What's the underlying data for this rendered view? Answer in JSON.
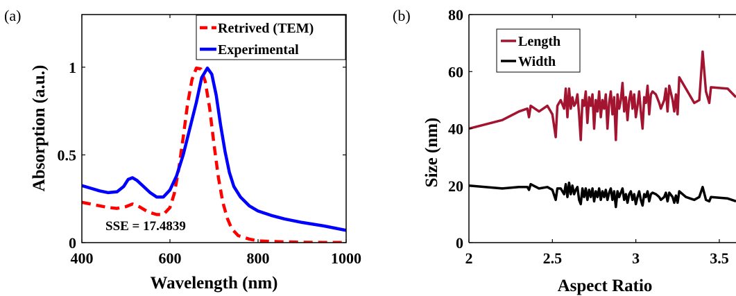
{
  "chart_data": [
    {
      "type": "line",
      "panel_label": "(a)",
      "xlabel": "Wavelength (nm)",
      "ylabel": "Absorption (a.u.)",
      "xlim": [
        400,
        1000
      ],
      "ylim": [
        0,
        1.3
      ],
      "xticks": [
        400,
        600,
        800,
        1000
      ],
      "xtick_labels": [
        "400",
        "600",
        "800",
        "1000"
      ],
      "yticks": [
        0,
        0.5,
        1
      ],
      "ytick_labels": [
        "0",
        "0.5",
        "1"
      ],
      "grid": false,
      "legend_position": "top-right",
      "annotation": "SSE = 17.4839",
      "series": [
        {
          "name": "Retrived (TEM)",
          "color": "#ff0000",
          "style": "dashed",
          "points": [
            [
              400,
              0.23
            ],
            [
              430,
              0.215
            ],
            [
              460,
              0.2
            ],
            [
              480,
              0.195
            ],
            [
              500,
              0.205
            ],
            [
              515,
              0.22
            ],
            [
              530,
              0.205
            ],
            [
              550,
              0.175
            ],
            [
              570,
              0.16
            ],
            [
              585,
              0.16
            ],
            [
              600,
              0.2
            ],
            [
              610,
              0.28
            ],
            [
              620,
              0.42
            ],
            [
              630,
              0.6
            ],
            [
              640,
              0.79
            ],
            [
              650,
              0.93
            ],
            [
              660,
              0.995
            ],
            [
              670,
              0.99
            ],
            [
              680,
              0.92
            ],
            [
              690,
              0.77
            ],
            [
              700,
              0.56
            ],
            [
              710,
              0.37
            ],
            [
              720,
              0.23
            ],
            [
              730,
              0.14
            ],
            [
              740,
              0.08
            ],
            [
              755,
              0.04
            ],
            [
              780,
              0.02
            ],
            [
              800,
              0.01
            ],
            [
              850,
              0.005
            ],
            [
              900,
              0.002
            ],
            [
              950,
              0.001
            ],
            [
              1000,
              0.001
            ]
          ]
        },
        {
          "name": "Experimental",
          "color": "#0000ff",
          "style": "solid",
          "points": [
            [
              400,
              0.325
            ],
            [
              420,
              0.31
            ],
            [
              440,
              0.295
            ],
            [
              460,
              0.285
            ],
            [
              480,
              0.29
            ],
            [
              495,
              0.32
            ],
            [
              505,
              0.36
            ],
            [
              515,
              0.37
            ],
            [
              525,
              0.355
            ],
            [
              540,
              0.32
            ],
            [
              555,
              0.285
            ],
            [
              570,
              0.26
            ],
            [
              585,
              0.26
            ],
            [
              600,
              0.3
            ],
            [
              615,
              0.38
            ],
            [
              630,
              0.5
            ],
            [
              645,
              0.65
            ],
            [
              660,
              0.8
            ],
            [
              672,
              0.94
            ],
            [
              685,
              0.995
            ],
            [
              695,
              0.96
            ],
            [
              705,
              0.84
            ],
            [
              715,
              0.67
            ],
            [
              725,
              0.52
            ],
            [
              735,
              0.4
            ],
            [
              745,
              0.32
            ],
            [
              760,
              0.26
            ],
            [
              780,
              0.21
            ],
            [
              800,
              0.18
            ],
            [
              830,
              0.155
            ],
            [
              860,
              0.135
            ],
            [
              900,
              0.115
            ],
            [
              950,
              0.095
            ],
            [
              1000,
              0.07
            ]
          ]
        }
      ]
    },
    {
      "type": "line",
      "panel_label": "(b)",
      "xlabel": "Aspect Ratio",
      "ylabel": "Size (nm)",
      "xlim": [
        2,
        3.6
      ],
      "ylim": [
        0,
        80
      ],
      "xticks": [
        2,
        2.5,
        3,
        3.5
      ],
      "xtick_labels": [
        "2",
        "2.5",
        "3",
        "3.5"
      ],
      "yticks": [
        0,
        20,
        40,
        60,
        80
      ],
      "ytick_labels": [
        "0",
        "20",
        "40",
        "60",
        "80"
      ],
      "grid": false,
      "legend_position": "top-left",
      "series": [
        {
          "name": "Length",
          "color": "#a2142f",
          "style": "solid",
          "points": [
            [
              2,
              40
            ],
            [
              2.2,
              43
            ],
            [
              2.3,
              46
            ],
            [
              2.35,
              47
            ],
            [
              2.36,
              44
            ],
            [
              2.37,
              48
            ],
            [
              2.42,
              46
            ],
            [
              2.47,
              48
            ],
            [
              2.5,
              45
            ],
            [
              2.52,
              37
            ],
            [
              2.53,
              48
            ],
            [
              2.55,
              50
            ],
            [
              2.57,
              47
            ],
            [
              2.58,
              54
            ],
            [
              2.59,
              44
            ],
            [
              2.6,
              54
            ],
            [
              2.61,
              47
            ],
            [
              2.62,
              51
            ],
            [
              2.63,
              48
            ],
            [
              2.64,
              49
            ],
            [
              2.65,
              52
            ],
            [
              2.66,
              45
            ],
            [
              2.67,
              36
            ],
            [
              2.68,
              50
            ],
            [
              2.69,
              48
            ],
            [
              2.7,
              53
            ],
            [
              2.71,
              42
            ],
            [
              2.72,
              51
            ],
            [
              2.73,
              48
            ],
            [
              2.74,
              52
            ],
            [
              2.75,
              40
            ],
            [
              2.76,
              50
            ],
            [
              2.77,
              46
            ],
            [
              2.78,
              53
            ],
            [
              2.79,
              44
            ],
            [
              2.8,
              50
            ],
            [
              2.81,
              47
            ],
            [
              2.82,
              52
            ],
            [
              2.83,
              40
            ],
            [
              2.84,
              49
            ],
            [
              2.85,
              53
            ],
            [
              2.86,
              45
            ],
            [
              2.87,
              51
            ],
            [
              2.88,
              36
            ],
            [
              2.89,
              52
            ],
            [
              2.9,
              47
            ],
            [
              2.91,
              50
            ],
            [
              2.92,
              56
            ],
            [
              2.93,
              46
            ],
            [
              2.94,
              51
            ],
            [
              2.95,
              43
            ],
            [
              2.96,
              50
            ],
            [
              2.97,
              53
            ],
            [
              2.98,
              47
            ],
            [
              2.99,
              52
            ],
            [
              3.0,
              44
            ],
            [
              3.01,
              48
            ],
            [
              3.02,
              53
            ],
            [
              3.03,
              46
            ],
            [
              3.04,
              40
            ],
            [
              3.05,
              51
            ],
            [
              3.06,
              49
            ],
            [
              3.07,
              55
            ],
            [
              3.08,
              45
            ],
            [
              3.09,
              52
            ],
            [
              3.1,
              53
            ],
            [
              3.12,
              52
            ],
            [
              3.14,
              49
            ],
            [
              3.15,
              47
            ],
            [
              3.17,
              50
            ],
            [
              3.18,
              54
            ],
            [
              3.19,
              46
            ],
            [
              3.2,
              55
            ],
            [
              3.22,
              50
            ],
            [
              3.23,
              46
            ],
            [
              3.24,
              52
            ],
            [
              3.25,
              45
            ],
            [
              3.26,
              58
            ],
            [
              3.3,
              54
            ],
            [
              3.35,
              49
            ],
            [
              3.38,
              50
            ],
            [
              3.4,
              67
            ],
            [
              3.42,
              53
            ],
            [
              3.44,
              49
            ],
            [
              3.45,
              54.5
            ],
            [
              3.55,
              54
            ],
            [
              3.6,
              51
            ]
          ]
        },
        {
          "name": "Width",
          "color": "#000000",
          "style": "solid",
          "points": [
            [
              2,
              20
            ],
            [
              2.2,
              19
            ],
            [
              2.3,
              19.5
            ],
            [
              2.35,
              19.5
            ],
            [
              2.36,
              18.5
            ],
            [
              2.37,
              20.5
            ],
            [
              2.42,
              19
            ],
            [
              2.47,
              19.5
            ],
            [
              2.5,
              18.5
            ],
            [
              2.52,
              15
            ],
            [
              2.53,
              19
            ],
            [
              2.55,
              19
            ],
            [
              2.57,
              17
            ],
            [
              2.58,
              20.5
            ],
            [
              2.59,
              16
            ],
            [
              2.6,
              21
            ],
            [
              2.61,
              17
            ],
            [
              2.62,
              20
            ],
            [
              2.63,
              17
            ],
            [
              2.64,
              18.5
            ],
            [
              2.65,
              19.5
            ],
            [
              2.66,
              15
            ],
            [
              2.67,
              13.5
            ],
            [
              2.68,
              19
            ],
            [
              2.69,
              16
            ],
            [
              2.7,
              19
            ],
            [
              2.71,
              15
            ],
            [
              2.72,
              18.5
            ],
            [
              2.73,
              16
            ],
            [
              2.74,
              19
            ],
            [
              2.75,
              14.5
            ],
            [
              2.76,
              18
            ],
            [
              2.77,
              16
            ],
            [
              2.78,
              19
            ],
            [
              2.79,
              15
            ],
            [
              2.8,
              18
            ],
            [
              2.81,
              16
            ],
            [
              2.82,
              18.5
            ],
            [
              2.83,
              15
            ],
            [
              2.84,
              17.5
            ],
            [
              2.85,
              19
            ],
            [
              2.86,
              15
            ],
            [
              2.87,
              18
            ],
            [
              2.88,
              12.5
            ],
            [
              2.89,
              18
            ],
            [
              2.9,
              16
            ],
            [
              2.91,
              17.5
            ],
            [
              2.92,
              19
            ],
            [
              2.93,
              15
            ],
            [
              2.94,
              17
            ],
            [
              2.95,
              14
            ],
            [
              2.96,
              17
            ],
            [
              2.97,
              18
            ],
            [
              2.98,
              15
            ],
            [
              2.99,
              17
            ],
            [
              3.0,
              13.5
            ],
            [
              3.01,
              16
            ],
            [
              3.02,
              18
            ],
            [
              3.03,
              15
            ],
            [
              3.04,
              13
            ],
            [
              3.05,
              17
            ],
            [
              3.06,
              16
            ],
            [
              3.07,
              18
            ],
            [
              3.08,
              14.5
            ],
            [
              3.09,
              17
            ],
            [
              3.1,
              17.5
            ],
            [
              3.12,
              17
            ],
            [
              3.14,
              16
            ],
            [
              3.15,
              15
            ],
            [
              3.17,
              16
            ],
            [
              3.18,
              17.5
            ],
            [
              3.19,
              14.5
            ],
            [
              3.2,
              17.5
            ],
            [
              3.22,
              16
            ],
            [
              3.23,
              14
            ],
            [
              3.24,
              16.5
            ],
            [
              3.25,
              14
            ],
            [
              3.26,
              18
            ],
            [
              3.3,
              16
            ],
            [
              3.35,
              15
            ],
            [
              3.38,
              16
            ],
            [
              3.4,
              19.5
            ],
            [
              3.42,
              15
            ],
            [
              3.44,
              14.5
            ],
            [
              3.45,
              16
            ],
            [
              3.55,
              15.5
            ],
            [
              3.6,
              14.5
            ]
          ]
        }
      ]
    }
  ]
}
